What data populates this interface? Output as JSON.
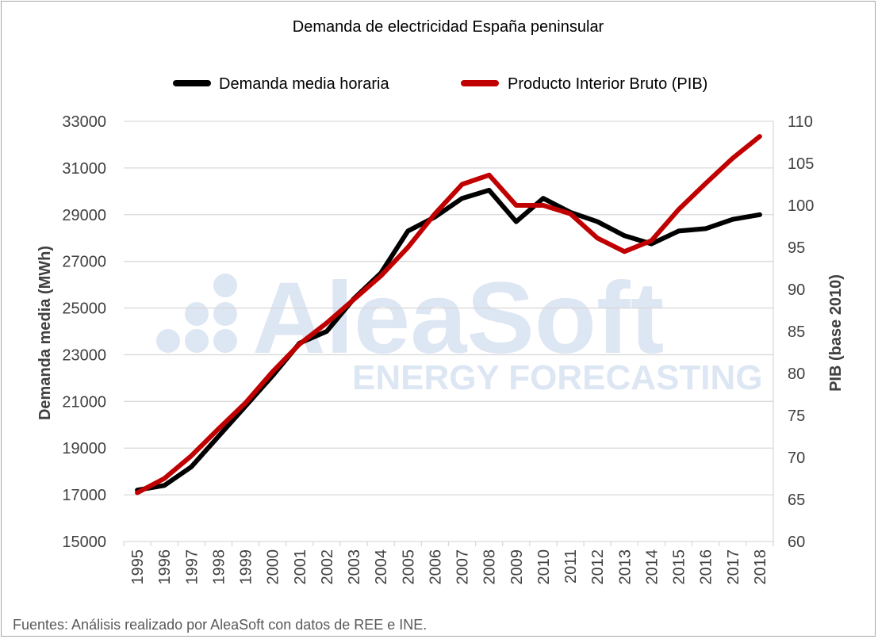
{
  "chart_data": {
    "type": "line",
    "title": "Demanda de electricidad España peninsular",
    "categories": [
      "1995",
      "1996",
      "1997",
      "1998",
      "1999",
      "2000",
      "2001",
      "2002",
      "2003",
      "2004",
      "2005",
      "2006",
      "2007",
      "2008",
      "2009",
      "2010",
      "2011",
      "2012",
      "2013",
      "2014",
      "2015",
      "2016",
      "2017",
      "2018"
    ],
    "series": [
      {
        "name": "Demanda media horaria",
        "axis": "left",
        "color": "#000000",
        "values": [
          17200,
          17400,
          18200,
          19500,
          20800,
          22100,
          23500,
          24000,
          25400,
          26500,
          28300,
          28900,
          29700,
          30050,
          28700,
          29700,
          29100,
          28700,
          28100,
          27750,
          28300,
          28400,
          28800,
          29000
        ]
      },
      {
        "name": "Producto Interior Bruto (PIB)",
        "axis": "right",
        "color": "#c00000",
        "values": [
          65.8,
          67.5,
          70.2,
          73.4,
          76.5,
          80.2,
          83.5,
          86.0,
          88.8,
          91.6,
          95.0,
          99.0,
          102.5,
          103.6,
          100.0,
          100.0,
          99.0,
          96.1,
          94.5,
          95.8,
          99.5,
          102.6,
          105.6,
          108.2
        ]
      }
    ],
    "ylabel": "Demanda media (MWh)",
    "ylim": [
      15000,
      33000
    ],
    "yticks": [
      "15000",
      "17000",
      "19000",
      "21000",
      "23000",
      "25000",
      "27000",
      "29000",
      "31000",
      "33000"
    ],
    "y2label": "PIB (base 2010)",
    "y2lim": [
      60,
      110
    ],
    "y2ticks": [
      "60",
      "65",
      "70",
      "75",
      "80",
      "85",
      "90",
      "95",
      "100",
      "105",
      "110"
    ],
    "grid": "horizontal",
    "legend_position": "top"
  },
  "watermark": {
    "brand": "AleaSoft",
    "tagline": "ENERGY FORECASTING",
    "color": "#dde6f3"
  },
  "source_note": "Fuentes: Análisis realizado por AleaSoft con datos de REE e INE."
}
